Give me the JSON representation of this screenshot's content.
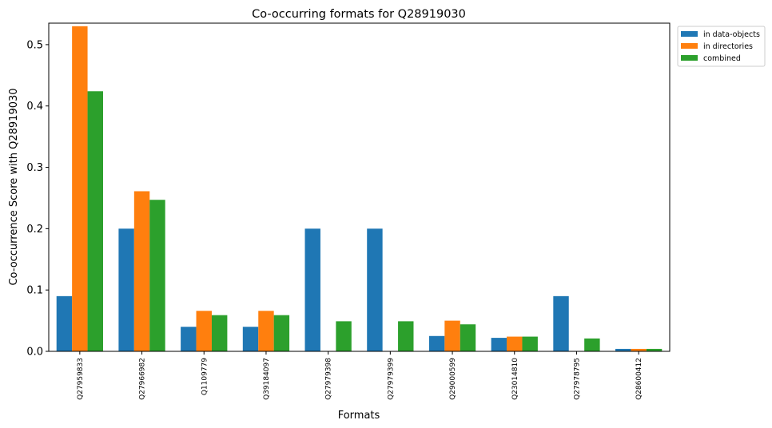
{
  "chart_data": {
    "type": "bar",
    "title": "Co-occurring formats for Q28919030",
    "xlabel": "Formats",
    "ylabel": "Co-occurrence Score with Q28919030",
    "categories": [
      "Q27959833",
      "Q27966982",
      "Q1109779",
      "Q39184097",
      "Q27979398",
      "Q27979399",
      "Q29000599",
      "Q23014810",
      "Q27978795",
      "Q28600412"
    ],
    "series": [
      {
        "name": "in data-objects",
        "color": "#1f77b4",
        "values": [
          0.09,
          0.2,
          0.04,
          0.04,
          0.2,
          0.2,
          0.025,
          0.022,
          0.09,
          0.004
        ]
      },
      {
        "name": "in directories",
        "color": "#ff7f0e",
        "values": [
          0.53,
          0.261,
          0.066,
          0.066,
          0.0,
          0.0,
          0.05,
          0.024,
          0.0,
          0.004
        ]
      },
      {
        "name": "combined",
        "color": "#2ca02c",
        "values": [
          0.424,
          0.247,
          0.059,
          0.059,
          0.049,
          0.049,
          0.044,
          0.024,
          0.021,
          0.004
        ]
      }
    ],
    "yticks": [
      "0.0",
      "0.1",
      "0.2",
      "0.3",
      "0.4",
      "0.5"
    ],
    "ylim": [
      0,
      0.535
    ],
    "grid": false,
    "legend_position": "outside-top-right"
  }
}
